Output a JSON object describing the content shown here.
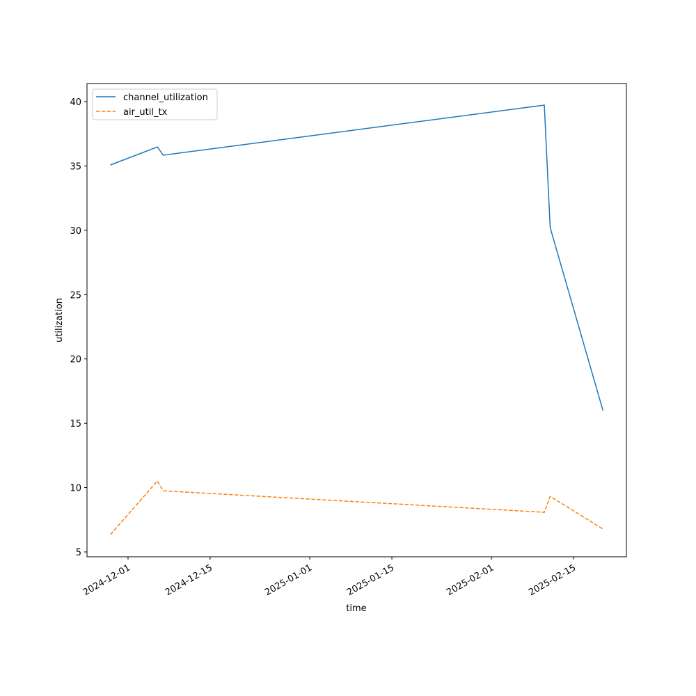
{
  "chart_data": {
    "type": "line",
    "xlabel": "time",
    "ylabel": "utilization",
    "x": [
      "2024-11-28",
      "2024-12-06",
      "2024-12-07",
      "2025-02-10",
      "2025-02-11",
      "2025-02-20"
    ],
    "series": [
      {
        "name": "channel_utilization",
        "color": "#1f77b4",
        "linestyle": "solid",
        "values": [
          35.08,
          36.48,
          35.84,
          39.73,
          30.21,
          15.99
        ]
      },
      {
        "name": "air_util_tx",
        "color": "#ff7f0e",
        "linestyle": "dashed",
        "values": [
          6.35,
          10.51,
          9.75,
          8.08,
          9.32,
          6.78
        ]
      }
    ],
    "xlim": [
      "2024-11-24",
      "2025-02-24"
    ],
    "xticks": [
      "2024-12-01",
      "2024-12-15",
      "2025-01-01",
      "2025-01-15",
      "2025-02-01",
      "2025-02-15"
    ],
    "ylim": [
      4.62,
      41.41
    ],
    "yticks": [
      5,
      10,
      15,
      20,
      25,
      30,
      35,
      40
    ],
    "legend": "upper left"
  }
}
